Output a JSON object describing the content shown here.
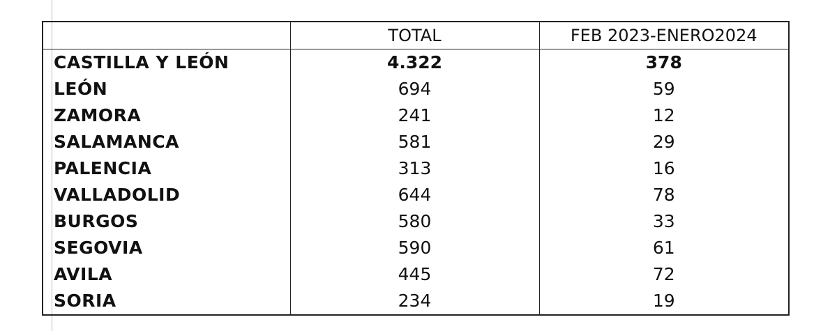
{
  "table": {
    "columns": [
      "TOTAL",
      "FEB 2023-ENERO2024"
    ],
    "rows": [
      [
        "CASTILLA Y LEÓN",
        "4.322",
        "378"
      ],
      [
        "LEÓN",
        "694",
        "59"
      ],
      [
        "ZAMORA",
        "241",
        "12"
      ],
      [
        "SALAMANCA",
        "581",
        "29"
      ],
      [
        "PALENCIA",
        "313",
        "16"
      ],
      [
        "VALLADOLID",
        "644",
        "78"
      ],
      [
        "BURGOS",
        "580",
        "33"
      ],
      [
        "SEGOVIA",
        "590",
        "61"
      ],
      [
        "AVILA",
        "445",
        "72"
      ],
      [
        "SORIA",
        "234",
        "19"
      ]
    ]
  }
}
